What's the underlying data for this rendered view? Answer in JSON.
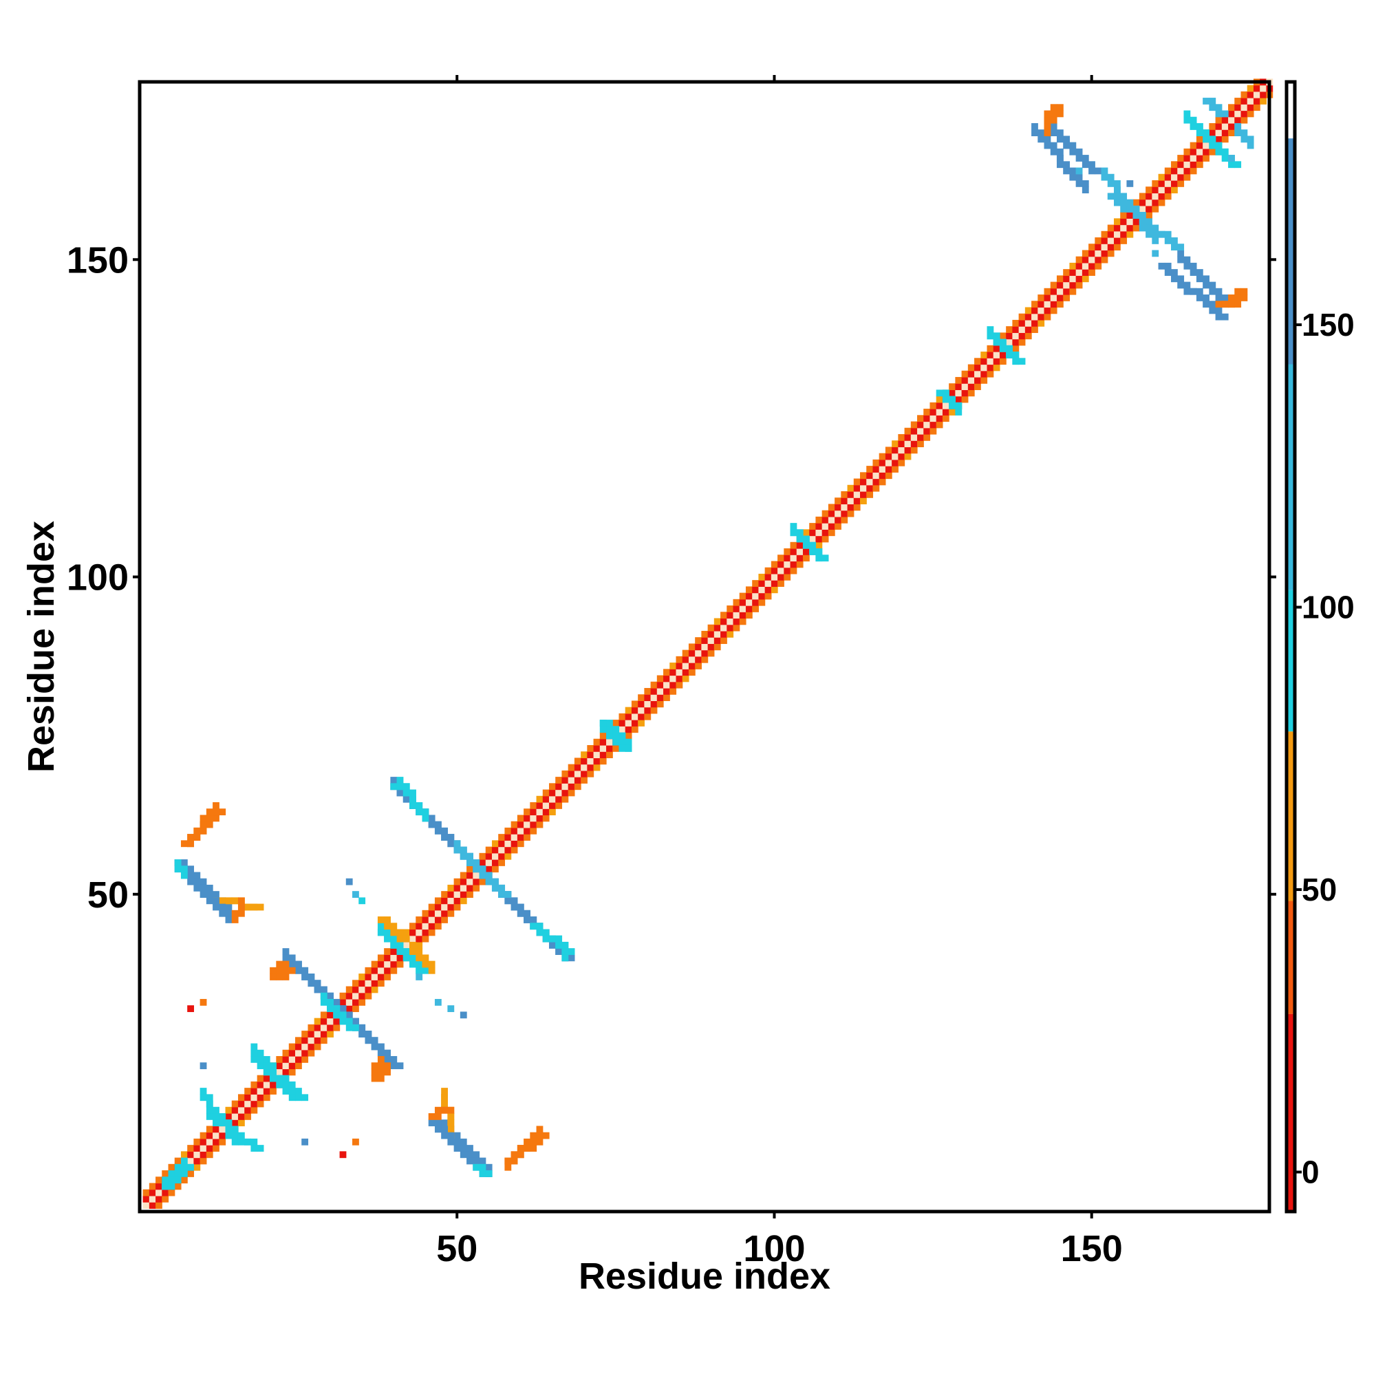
{
  "chart_data": {
    "type": "heatmap",
    "title": "",
    "xlabel": "Residue index",
    "ylabel": "Residue index",
    "xlim": [
      1,
      178
    ],
    "ylim": [
      1,
      178
    ],
    "x_ticks": [
      50,
      100,
      150
    ],
    "y_ticks": [
      50,
      100,
      150
    ],
    "colorbar": {
      "ticks": [
        0,
        50,
        100,
        150
      ],
      "range": [
        -7,
        193
      ],
      "bands": [
        {
          "from": -7,
          "to": 28,
          "color": "#e8140e"
        },
        {
          "from": 28,
          "to": 48,
          "color": "#f25a10"
        },
        {
          "from": 48,
          "to": 78,
          "color": "#f39a12"
        },
        {
          "from": 78,
          "to": 103,
          "color": "#1fd0e0"
        },
        {
          "from": 103,
          "to": 143,
          "color": "#38b8dc"
        },
        {
          "from": 143,
          "to": 183,
          "color": "#4a8fc8"
        },
        {
          "from": 183,
          "to": 193,
          "color": "#ffffff"
        }
      ]
    },
    "colors": {
      "diag": "#fbe3c8",
      "red": "#e8140e",
      "orange": "#f5780f",
      "amber": "#f5a00f",
      "cyan": "#1fd0e0",
      "skyblue": "#3fb8de",
      "steelblue": "#4a8fc8"
    },
    "strands": [
      {
        "x1": 6,
        "y1": 55,
        "x2": 13,
        "y2": 48,
        "color": "steelblue"
      },
      {
        "x1": 12,
        "y1": 49,
        "x2": 18,
        "y2": 48,
        "color": "amber"
      },
      {
        "x1": 7,
        "y1": 58,
        "x2": 12,
        "y2": 63,
        "color": "orange"
      },
      {
        "x1": 24,
        "y1": 39,
        "x2": 40,
        "y2": 23,
        "color": "steelblue"
      },
      {
        "x1": 30,
        "y1": 32,
        "x2": 33,
        "y2": 29,
        "color": "cyan"
      },
      {
        "x1": 22,
        "y1": 37,
        "x2": 23,
        "y2": 38,
        "color": "orange"
      },
      {
        "x1": 38,
        "y1": 23,
        "x2": 37,
        "y2": 21,
        "color": "orange"
      },
      {
        "x1": 40,
        "y1": 67,
        "x2": 67,
        "y2": 40,
        "color": "steelblue"
      },
      {
        "x1": 53,
        "y1": 54,
        "x2": 57,
        "y2": 50,
        "color": "skyblue"
      },
      {
        "x1": 62,
        "y1": 45,
        "x2": 67,
        "y2": 41,
        "color": "cyan"
      },
      {
        "x1": 40,
        "y1": 67,
        "x2": 42,
        "y2": 66,
        "color": "cyan"
      },
      {
        "x1": 46,
        "y1": 14,
        "x2": 54,
        "y2": 6,
        "color": "steelblue"
      },
      {
        "x1": 46,
        "y1": 15,
        "x2": 48,
        "y2": 16,
        "color": "orange"
      },
      {
        "x1": 53,
        "y1": 7,
        "x2": 54,
        "y2": 6,
        "color": "cyan"
      },
      {
        "x1": 58,
        "y1": 8,
        "x2": 63,
        "y2": 12,
        "color": "orange"
      },
      {
        "x1": 4,
        "y1": 4,
        "x2": 7,
        "y2": 7,
        "color": "cyan"
      },
      {
        "x1": 11,
        "y1": 15,
        "x2": 18,
        "y2": 10,
        "color": "cyan"
      },
      {
        "x1": 18,
        "y1": 24,
        "x2": 25,
        "y2": 18,
        "color": "cyan"
      },
      {
        "x1": 38,
        "y1": 44,
        "x2": 44,
        "y2": 38,
        "color": "cyan"
      },
      {
        "x1": 38,
        "y1": 46,
        "x2": 41,
        "y2": 43,
        "color": "amber"
      },
      {
        "x1": 143,
        "y1": 171,
        "x2": 150,
        "y2": 164,
        "color": "steelblue"
      },
      {
        "x1": 143,
        "y1": 172,
        "x2": 144,
        "y2": 174,
        "color": "orange"
      },
      {
        "x1": 153,
        "y1": 160,
        "x2": 163,
        "y2": 152,
        "color": "skyblue"
      },
      {
        "x1": 161,
        "y1": 149,
        "x2": 170,
        "y2": 141,
        "color": "steelblue"
      },
      {
        "x1": 170,
        "y1": 143,
        "x2": 172,
        "y2": 143,
        "color": "orange"
      },
      {
        "x1": 166,
        "y1": 171,
        "x2": 172,
        "y2": 165,
        "color": "cyan"
      },
      {
        "x1": 168,
        "y1": 175,
        "x2": 170,
        "y2": 173,
        "color": "skyblue"
      },
      {
        "x1": 73,
        "y1": 77,
        "x2": 76,
        "y2": 73,
        "color": "cyan"
      },
      {
        "x1": 103,
        "y1": 107,
        "x2": 107,
        "y2": 103,
        "color": "cyan"
      },
      {
        "x1": 126,
        "y1": 129,
        "x2": 128,
        "y2": 127,
        "color": "cyan"
      },
      {
        "x1": 134,
        "y1": 138,
        "x2": 138,
        "y2": 134,
        "color": "cyan"
      }
    ],
    "scatter": [
      {
        "x": 8,
        "y": 32,
        "color": "red"
      },
      {
        "x": 10,
        "y": 33,
        "color": "orange"
      },
      {
        "x": 10,
        "y": 23,
        "color": "steelblue"
      },
      {
        "x": 26,
        "y": 11,
        "color": "steelblue"
      },
      {
        "x": 32,
        "y": 9,
        "color": "red"
      },
      {
        "x": 34,
        "y": 11,
        "color": "orange"
      },
      {
        "x": 33,
        "y": 52,
        "color": "steelblue"
      },
      {
        "x": 34,
        "y": 50,
        "color": "skyblue"
      },
      {
        "x": 35,
        "y": 49,
        "color": "cyan"
      },
      {
        "x": 44,
        "y": 37,
        "color": "skyblue"
      },
      {
        "x": 47,
        "y": 33,
        "color": "skyblue"
      },
      {
        "x": 49,
        "y": 32,
        "color": "skyblue"
      },
      {
        "x": 51,
        "y": 31,
        "color": "steelblue"
      },
      {
        "x": 148,
        "y": 164,
        "color": "skyblue"
      },
      {
        "x": 160,
        "y": 151,
        "color": "skyblue"
      },
      {
        "x": 172,
        "y": 166,
        "color": "skyblue"
      },
      {
        "x": 156,
        "y": 162,
        "color": "steelblue"
      }
    ]
  }
}
